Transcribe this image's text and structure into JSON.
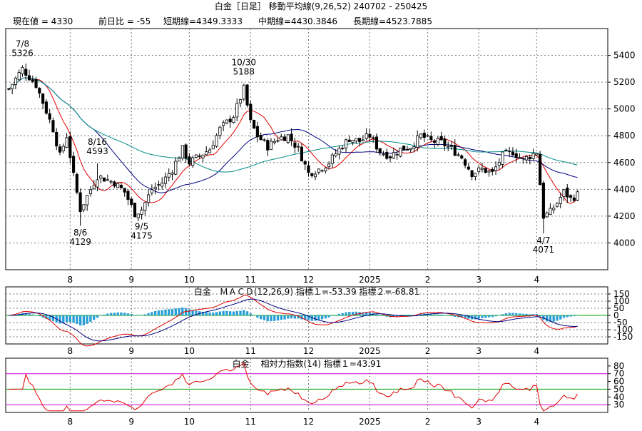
{
  "window_title": "白金［日足］ 移動平均線(9,26,52) 240702 - 250425",
  "chart_data": [
    {
      "type": "candlestick",
      "header": {
        "current_label": "現在値 = 4330",
        "change_label": "前日比 = -55",
        "short_label": "短期線=4349.3333",
        "mid_label": "中期線=4430.3846",
        "long_label": "長期線=4523.7885"
      },
      "ylim": [
        3800,
        5600
      ],
      "yticks": [
        4000,
        4200,
        4400,
        4600,
        4800,
        5000,
        5200,
        5400
      ],
      "ytick_labels": [
        "4000",
        "4200",
        "4400",
        "4600",
        "4800",
        "5000",
        "5200",
        "5400"
      ],
      "xticks": [
        "8",
        "9",
        "10",
        "11",
        "12",
        "2025",
        "2",
        "3",
        "4"
      ],
      "xtick_index": [
        18,
        36,
        53,
        71,
        88,
        106,
        123,
        138,
        155
      ],
      "annotations": [
        {
          "date": "7/8",
          "value": "5326",
          "i": 4,
          "y": 5326,
          "pos": "above"
        },
        {
          "date": "8/6",
          "value": "4129",
          "i": 21,
          "y": 4129,
          "pos": "below"
        },
        {
          "date": "8/16",
          "value": "4593",
          "i": 26,
          "y": 4593,
          "pos": "above"
        },
        {
          "date": "9/5",
          "value": "4175",
          "i": 39,
          "y": 4175,
          "pos": "below"
        },
        {
          "date": "10/30",
          "value": "5188",
          "i": 69,
          "y": 5188,
          "pos": "above"
        },
        {
          "date": "4/7",
          "value": "4071",
          "i": 157,
          "y": 4071,
          "pos": "below"
        }
      ],
      "price_anchors": [
        [
          0,
          5150
        ],
        [
          4,
          5300
        ],
        [
          8,
          5180
        ],
        [
          10,
          5050
        ],
        [
          13,
          4850
        ],
        [
          15,
          4650
        ],
        [
          17,
          4800
        ],
        [
          19,
          4500
        ],
        [
          21,
          4250
        ],
        [
          23,
          4350
        ],
        [
          26,
          4500
        ],
        [
          28,
          4480
        ],
        [
          31,
          4450
        ],
        [
          34,
          4380
        ],
        [
          37,
          4220
        ],
        [
          39,
          4250
        ],
        [
          42,
          4400
        ],
        [
          45,
          4450
        ],
        [
          48,
          4550
        ],
        [
          51,
          4700
        ],
        [
          53,
          4600
        ],
        [
          56,
          4650
        ],
        [
          59,
          4700
        ],
        [
          62,
          4850
        ],
        [
          66,
          4950
        ],
        [
          69,
          5150
        ],
        [
          71,
          4900
        ],
        [
          73,
          4800
        ],
        [
          76,
          4720
        ],
        [
          79,
          4780
        ],
        [
          82,
          4800
        ],
        [
          85,
          4700
        ],
        [
          88,
          4520
        ],
        [
          91,
          4550
        ],
        [
          94,
          4600
        ],
        [
          97,
          4700
        ],
        [
          100,
          4780
        ],
        [
          103,
          4760
        ],
        [
          106,
          4800
        ],
        [
          109,
          4680
        ],
        [
          112,
          4650
        ],
        [
          115,
          4700
        ],
        [
          118,
          4720
        ],
        [
          121,
          4800
        ],
        [
          124,
          4760
        ],
        [
          127,
          4750
        ],
        [
          130,
          4700
        ],
        [
          133,
          4640
        ],
        [
          136,
          4520
        ],
        [
          139,
          4550
        ],
        [
          142,
          4520
        ],
        [
          145,
          4650
        ],
        [
          148,
          4680
        ],
        [
          151,
          4620
        ],
        [
          153,
          4650
        ],
        [
          155,
          4680
        ],
        [
          157,
          4200
        ],
        [
          159,
          4230
        ],
        [
          161,
          4300
        ],
        [
          163,
          4380
        ],
        [
          165,
          4330
        ],
        [
          167,
          4360
        ]
      ],
      "series": [
        {
          "name": "短期線",
          "color": "#e00000"
        },
        {
          "name": "中期線",
          "color": "#000080"
        },
        {
          "name": "長期線",
          "color": "#008b8b"
        }
      ],
      "up_color": "#000000",
      "down_color": "#000000"
    },
    {
      "type": "macd",
      "title": "白金　ＭＡＣＤ(12,26,9) 指標１=-53.39 指標２=-68.81",
      "ylim": [
        -200,
        200
      ],
      "yticks": [
        150,
        100,
        50,
        0,
        -50,
        -100,
        -150
      ],
      "ytick_labels": [
        "150",
        "100",
        "50",
        "0",
        "-50",
        "-100",
        "-150"
      ],
      "xticks": [
        "8",
        "9",
        "10",
        "11",
        "12",
        "2025",
        "2",
        "3",
        "4"
      ],
      "colors": {
        "macd": "#e00000",
        "signal": "#000080",
        "histogram": "#2a9fd6",
        "zero": "#00a000"
      }
    },
    {
      "type": "rsi",
      "title": "白金　 相対力指数(14) 指標１=43.91",
      "ylim": [
        20,
        90
      ],
      "yticks": [
        80,
        70,
        60,
        50,
        40,
        30
      ],
      "ytick_labels": [
        "80",
        "70",
        "60",
        "50",
        "40",
        "30"
      ],
      "levels": [
        70,
        50,
        30
      ],
      "xticks": [
        "8",
        "9",
        "10",
        "11",
        "12",
        "2025",
        "2",
        "3",
        "4"
      ],
      "colors": {
        "line": "#e00000",
        "upper": "#d000d0",
        "middle": "#00a000",
        "lower": "#d000d0"
      }
    }
  ]
}
